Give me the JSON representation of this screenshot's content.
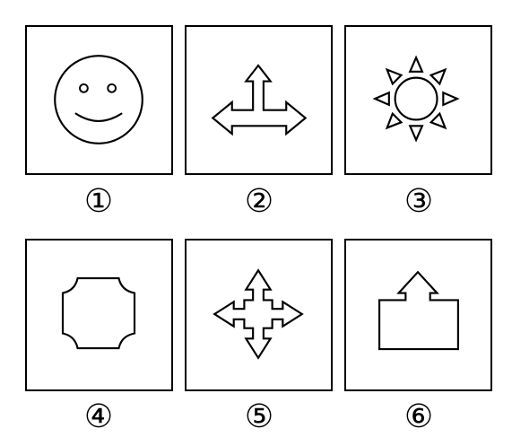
{
  "colors": {
    "stroke": "#000000",
    "background": "#ffffff"
  },
  "panels": [
    {
      "id": 1,
      "label": "①",
      "icon": "smiley-face-icon"
    },
    {
      "id": 2,
      "label": "②",
      "icon": "three-way-arrow-icon"
    },
    {
      "id": 3,
      "label": "③",
      "icon": "sun-icon"
    },
    {
      "id": 4,
      "label": "④",
      "icon": "notched-square-icon"
    },
    {
      "id": 5,
      "label": "⑤",
      "icon": "four-way-arrow-icon"
    },
    {
      "id": 6,
      "label": "⑥",
      "icon": "box-with-up-arrow-icon"
    }
  ]
}
